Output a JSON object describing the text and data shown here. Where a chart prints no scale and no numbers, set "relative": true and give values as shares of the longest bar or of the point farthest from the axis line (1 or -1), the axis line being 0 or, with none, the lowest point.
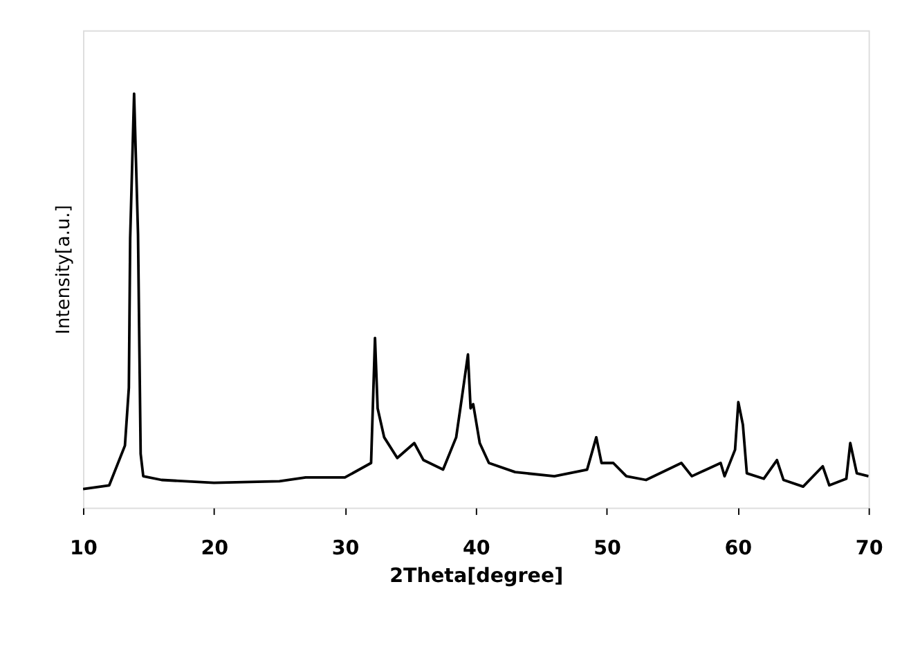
{
  "chart_data": {
    "type": "line",
    "relative": true,
    "xlabel": "2Theta[degree]",
    "ylabel": "Intensity[a.u.]",
    "xlim": [
      10,
      70
    ],
    "xticks": [
      10,
      20,
      30,
      40,
      50,
      60,
      70
    ],
    "tick_labels": "x",
    "grid": false,
    "legend": false,
    "marker": "none",
    "line_style": "solid",
    "series": [
      {
        "color": "#000000",
        "x": [
          10,
          12,
          13.2,
          13.5,
          13.6,
          13.9,
          14.2,
          14.4,
          14.6,
          16,
          20,
          25,
          27,
          30,
          32,
          32.3,
          32.5,
          33,
          34,
          35.3,
          36,
          37.5,
          38.5,
          39,
          39.4,
          39.6,
          39.8,
          40.3,
          41,
          43,
          46,
          48.5,
          49.2,
          49.6,
          50.5,
          51.5,
          53,
          55.7,
          56.5,
          58.7,
          59,
          59.8,
          60.05,
          60.4,
          60.7,
          62,
          63,
          63.5,
          65,
          66.5,
          67,
          68.3,
          68.6,
          69.1,
          70
        ],
        "values": [
          0.045,
          0.054,
          0.15,
          0.29,
          0.65,
          1.0,
          0.66,
          0.13,
          0.076,
          0.067,
          0.06,
          0.064,
          0.073,
          0.073,
          0.108,
          0.41,
          0.24,
          0.17,
          0.12,
          0.156,
          0.115,
          0.092,
          0.17,
          0.28,
          0.37,
          0.24,
          0.25,
          0.156,
          0.108,
          0.086,
          0.076,
          0.092,
          0.17,
          0.108,
          0.108,
          0.076,
          0.067,
          0.108,
          0.076,
          0.108,
          0.076,
          0.14,
          0.255,
          0.2,
          0.083,
          0.07,
          0.115,
          0.067,
          0.051,
          0.1,
          0.054,
          0.07,
          0.156,
          0.083,
          0.076
        ]
      }
    ]
  }
}
